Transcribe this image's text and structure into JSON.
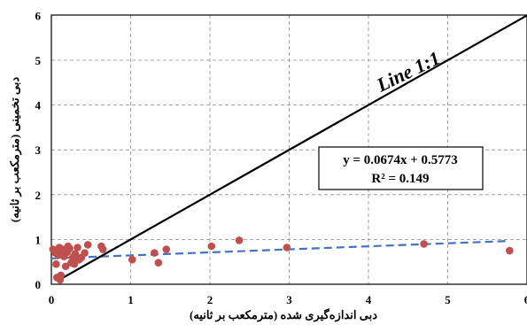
{
  "chart_data": {
    "type": "scatter",
    "title": "",
    "xlabel": "دبی اندازه‌گیری شده (مترمکعب بر ثانیه)",
    "ylabel": "دبی تخمینی (مترمکعب بر ثانیه)",
    "xlim": [
      0,
      6
    ],
    "ylim": [
      0,
      6
    ],
    "xticks": [
      "0",
      "1",
      "2",
      "3",
      "4",
      "5",
      "6"
    ],
    "yticks": [
      "0",
      "1",
      "2",
      "3",
      "4",
      "5",
      "6"
    ],
    "grid": true,
    "series": [
      {
        "kind": "points",
        "color": "#C0504D",
        "points": [
          [
            0.02,
            0.78
          ],
          [
            0.05,
            0.7
          ],
          [
            0.06,
            0.45
          ],
          [
            0.07,
            0.15
          ],
          [
            0.08,
            0.72
          ],
          [
            0.09,
            0.65
          ],
          [
            0.1,
            0.82
          ],
          [
            0.11,
            0.1
          ],
          [
            0.12,
            0.2
          ],
          [
            0.13,
            0.75
          ],
          [
            0.15,
            0.78
          ],
          [
            0.16,
            0.62
          ],
          [
            0.17,
            0.68
          ],
          [
            0.18,
            0.4
          ],
          [
            0.19,
            0.75
          ],
          [
            0.2,
            0.72
          ],
          [
            0.21,
            0.85
          ],
          [
            0.23,
            0.8
          ],
          [
            0.25,
            0.48
          ],
          [
            0.27,
            0.6
          ],
          [
            0.29,
            0.45
          ],
          [
            0.3,
            0.68
          ],
          [
            0.33,
            0.82
          ],
          [
            0.35,
            0.55
          ],
          [
            0.38,
            0.6
          ],
          [
            0.42,
            0.7
          ],
          [
            0.46,
            0.88
          ],
          [
            0.63,
            0.85
          ],
          [
            0.65,
            0.78
          ],
          [
            1.02,
            0.55
          ],
          [
            1.3,
            0.7
          ],
          [
            1.35,
            0.48
          ],
          [
            1.45,
            0.78
          ],
          [
            2.02,
            0.85
          ],
          [
            2.37,
            0.98
          ],
          [
            2.97,
            0.82
          ],
          [
            4.7,
            0.9
          ],
          [
            5.78,
            0.75
          ]
        ]
      },
      {
        "kind": "trendline",
        "color": "#4472C4",
        "slope": 0.0674,
        "intercept": 0.5773,
        "x_range": [
          0,
          5.78
        ]
      },
      {
        "kind": "identity",
        "color": "#000000",
        "x_range": [
          0.1,
          6
        ]
      }
    ],
    "annotations": {
      "line_label": "Line 1:1",
      "equation": "y = 0.0674x + 0.5773",
      "r_squared": "R² = 0.149"
    }
  }
}
